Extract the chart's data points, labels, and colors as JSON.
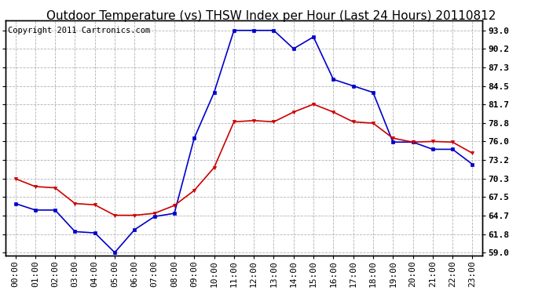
{
  "title": "Outdoor Temperature (vs) THSW Index per Hour (Last 24 Hours) 20110812",
  "copyright": "Copyright 2011 Cartronics.com",
  "hours": [
    "00:00",
    "01:00",
    "02:00",
    "03:00",
    "04:00",
    "05:00",
    "06:00",
    "07:00",
    "08:00",
    "09:00",
    "10:00",
    "11:00",
    "12:00",
    "13:00",
    "14:00",
    "15:00",
    "16:00",
    "17:00",
    "18:00",
    "19:00",
    "20:00",
    "21:00",
    "22:00",
    "23:00"
  ],
  "outdoor_temp": [
    70.3,
    69.1,
    68.9,
    66.5,
    66.3,
    64.7,
    64.7,
    65.0,
    66.2,
    68.5,
    72.0,
    79.0,
    79.2,
    79.0,
    80.5,
    81.7,
    80.5,
    79.0,
    78.8,
    76.5,
    75.9,
    76.0,
    75.9,
    74.2
  ],
  "thsw_index": [
    66.5,
    65.5,
    65.5,
    62.2,
    62.0,
    59.0,
    62.5,
    64.5,
    65.0,
    76.5,
    83.5,
    93.0,
    93.0,
    93.0,
    90.2,
    92.0,
    85.5,
    84.5,
    83.5,
    75.9,
    75.9,
    74.8,
    74.8,
    72.5
  ],
  "outdoor_color": "#cc0000",
  "thsw_color": "#0000cc",
  "bg_color": "#ffffff",
  "grid_color": "#aaaaaa",
  "yticks": [
    59.0,
    61.8,
    64.7,
    67.5,
    70.3,
    73.2,
    76.0,
    78.8,
    81.7,
    84.5,
    87.3,
    90.2,
    93.0
  ],
  "ylim": [
    58.5,
    94.5
  ],
  "title_fontsize": 11,
  "tick_fontsize": 8,
  "copyright_fontsize": 7.5
}
